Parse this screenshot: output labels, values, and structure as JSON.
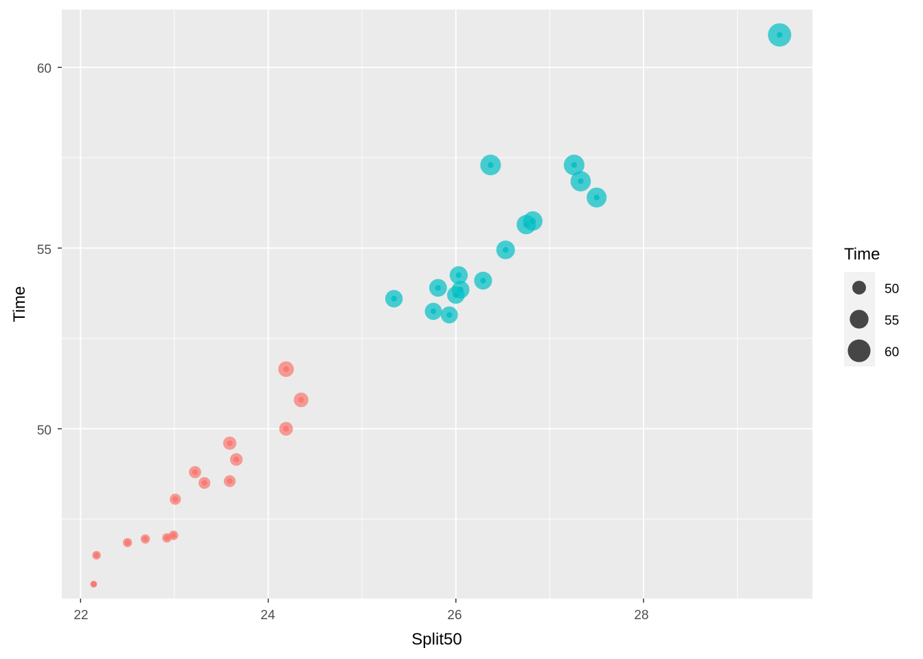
{
  "chart_data": {
    "type": "scatter",
    "title": "",
    "xlabel": "Split50",
    "ylabel": "Time",
    "xlim": [
      21.8,
      29.8
    ],
    "ylim": [
      45.3,
      61.6
    ],
    "x_ticks": [
      22,
      24,
      26,
      28
    ],
    "y_ticks": [
      50,
      55,
      60
    ],
    "grid": true,
    "legend": {
      "title": "Time",
      "position": "right",
      "entries": [
        {
          "label": "50",
          "value": 50
        },
        {
          "label": "55",
          "value": 55
        },
        {
          "label": "60",
          "value": 60
        }
      ]
    },
    "colors": {
      "group_a": "#F8766D",
      "group_b": "#00BFC4",
      "legend_key": "#333333",
      "panel": "#EBEBEB"
    },
    "size_range": [
      45.7,
      60.9
    ],
    "series": [
      {
        "color": "#F8766D",
        "points": [
          {
            "x": 22.14,
            "y": 45.7
          },
          {
            "x": 22.17,
            "y": 46.5
          },
          {
            "x": 22.5,
            "y": 46.85
          },
          {
            "x": 22.69,
            "y": 46.95
          },
          {
            "x": 22.92,
            "y": 46.98
          },
          {
            "x": 22.99,
            "y": 47.05
          },
          {
            "x": 23.01,
            "y": 48.05
          },
          {
            "x": 23.22,
            "y": 48.8
          },
          {
            "x": 23.32,
            "y": 48.5
          },
          {
            "x": 23.59,
            "y": 48.55
          },
          {
            "x": 23.59,
            "y": 49.6
          },
          {
            "x": 23.66,
            "y": 49.15
          },
          {
            "x": 24.19,
            "y": 50.0
          },
          {
            "x": 24.19,
            "y": 51.65
          },
          {
            "x": 24.35,
            "y": 50.8
          }
        ]
      },
      {
        "color": "#00BFC4",
        "points": [
          {
            "x": 25.34,
            "y": 53.6
          },
          {
            "x": 25.76,
            "y": 53.25
          },
          {
            "x": 25.81,
            "y": 53.9
          },
          {
            "x": 25.93,
            "y": 53.15
          },
          {
            "x": 26.0,
            "y": 53.7
          },
          {
            "x": 26.03,
            "y": 54.25
          },
          {
            "x": 26.05,
            "y": 53.85
          },
          {
            "x": 26.29,
            "y": 54.1
          },
          {
            "x": 26.37,
            "y": 57.3
          },
          {
            "x": 26.53,
            "y": 54.95
          },
          {
            "x": 26.75,
            "y": 55.65
          },
          {
            "x": 26.82,
            "y": 55.75
          },
          {
            "x": 27.26,
            "y": 57.3
          },
          {
            "x": 27.33,
            "y": 56.85
          },
          {
            "x": 27.5,
            "y": 56.4
          },
          {
            "x": 29.45,
            "y": 60.9
          }
        ]
      }
    ]
  }
}
